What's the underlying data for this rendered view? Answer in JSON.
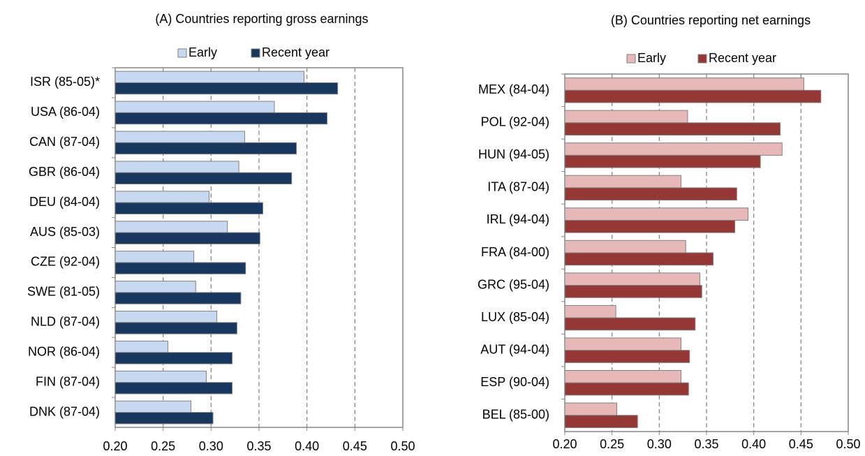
{
  "chart_data": [
    {
      "type": "bar",
      "title": "(A) Countries reporting gross earnings",
      "categories": [
        "ISR (85-05)*",
        "USA (86-04)",
        "CAN (87-04)",
        "GBR (86-04)",
        "DEU (84-04)",
        "AUS (85-03)",
        "CZE (92-04)",
        "SWE (81-05)",
        "NLD (87-04)",
        "NOR (86-04)",
        "FIN (87-04)",
        "DNK (87-04)"
      ],
      "series": [
        {
          "name": "Early",
          "color": "#c6d9f1",
          "values": [
            0.397,
            0.366,
            0.335,
            0.329,
            0.298,
            0.317,
            0.282,
            0.284,
            0.306,
            0.255,
            0.295,
            0.279
          ]
        },
        {
          "name": "Recent year",
          "color": "#17375e",
          "values": [
            0.432,
            0.421,
            0.389,
            0.384,
            0.354,
            0.351,
            0.336,
            0.331,
            0.327,
            0.322,
            0.322,
            0.302
          ]
        }
      ],
      "xlim": [
        0.2,
        0.5
      ],
      "xticks": [
        {
          "value": 0.2,
          "label": "0.20"
        },
        {
          "value": 0.25,
          "label": "0.25"
        },
        {
          "value": 0.3,
          "label": "0.30"
        },
        {
          "value": 0.35,
          "label": "0.35"
        },
        {
          "value": 0.4,
          "label": "0.40"
        },
        {
          "value": 0.45,
          "label": "0.45"
        },
        {
          "value": 0.5,
          "label": "0.50"
        }
      ],
      "grid": true,
      "legend": "top"
    },
    {
      "type": "bar",
      "title": "(B) Countries reporting net earnings",
      "categories": [
        "MEX (84-04)",
        "POL (92-04)",
        "HUN (94-05)",
        "ITA (87-04)",
        "IRL (94-04)",
        "FRA (84-00)",
        "GRC (95-04)",
        "LUX (85-04)",
        "AUT (94-04)",
        "ESP (90-04)",
        "BEL (85-00)"
      ],
      "series": [
        {
          "name": "Early",
          "color": "#e6b9b8",
          "values": [
            0.453,
            0.33,
            0.43,
            0.323,
            0.394,
            0.328,
            0.343,
            0.254,
            0.323,
            0.323,
            0.255
          ]
        },
        {
          "name": "Recent year",
          "color": "#953735",
          "values": [
            0.471,
            0.428,
            0.407,
            0.382,
            0.38,
            0.357,
            0.345,
            0.338,
            0.332,
            0.331,
            0.277
          ]
        }
      ],
      "xlim": [
        0.2,
        0.5
      ],
      "xticks": [
        {
          "value": 0.2,
          "label": "0.20"
        },
        {
          "value": 0.25,
          "label": "0.25"
        },
        {
          "value": 0.3,
          "label": "0.30"
        },
        {
          "value": 0.35,
          "label": "0.35"
        },
        {
          "value": 0.4,
          "label": "0.40"
        },
        {
          "value": 0.45,
          "label": "0.45"
        },
        {
          "value": 0.5,
          "label": "0.50"
        }
      ],
      "grid": true,
      "legend": "top"
    }
  ]
}
